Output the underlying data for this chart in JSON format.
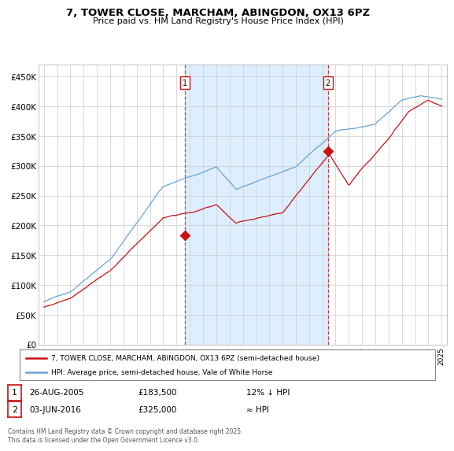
{
  "title": "7, TOWER CLOSE, MARCHAM, ABINGDON, OX13 6PZ",
  "subtitle": "Price paid vs. HM Land Registry's House Price Index (HPI)",
  "ylim": [
    0,
    470000
  ],
  "yticks": [
    0,
    50000,
    100000,
    150000,
    200000,
    250000,
    300000,
    350000,
    400000,
    450000
  ],
  "ytick_labels": [
    "£0",
    "£50K",
    "£100K",
    "£150K",
    "£200K",
    "£250K",
    "£300K",
    "£350K",
    "£400K",
    "£450K"
  ],
  "hpi_color": "#6aa3d5",
  "price_color": "#cc1111",
  "shade_color": "#ddeeff",
  "vline_color": "#cc4444",
  "marker1_x": 2005.65,
  "marker1_y": 183500,
  "marker2_x": 2016.42,
  "marker2_y": 325000,
  "legend_line1": "7, TOWER CLOSE, MARCHAM, ABINGDON, OX13 6PZ (semi-detached house)",
  "legend_line2": "HPI: Average price, semi-detached house, Vale of White Horse",
  "copyright": "Contains HM Land Registry data © Crown copyright and database right 2025.\nThis data is licensed under the Open Government Licence v3.0.",
  "background_color": "#ffffff",
  "grid_color": "#cccccc",
  "xmin": 1995,
  "xmax": 2025
}
